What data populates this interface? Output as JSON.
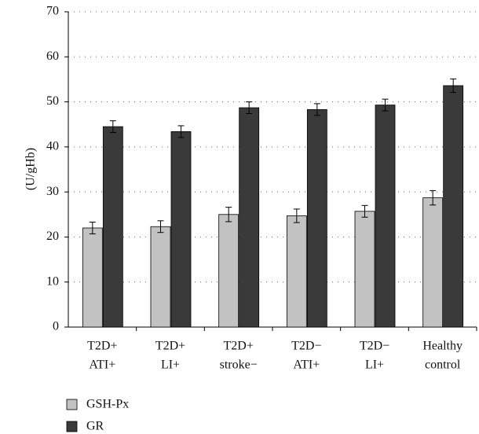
{
  "chart_data": {
    "type": "bar",
    "y_label": "(U/gHb)",
    "categories": [
      [
        "T2D+",
        "ATI+"
      ],
      [
        "T2D+",
        "LI+"
      ],
      [
        "T2D+",
        "stroke−"
      ],
      [
        "T2D−",
        "ATI+"
      ],
      [
        "T2D−",
        "LI+"
      ],
      [
        "Healthy",
        "control"
      ]
    ],
    "series": [
      {
        "name": "GSH-Px",
        "color": "#c2c2c2",
        "values": [
          22.0,
          22.3,
          25.0,
          24.7,
          25.7,
          28.7
        ],
        "errors": [
          1.3,
          1.3,
          1.6,
          1.5,
          1.3,
          1.6
        ]
      },
      {
        "name": "GR",
        "color": "#3a3a3a",
        "values": [
          44.5,
          43.4,
          48.7,
          48.3,
          49.3,
          53.6
        ],
        "errors": [
          1.3,
          1.3,
          1.3,
          1.3,
          1.3,
          1.5
        ]
      }
    ],
    "ylim": [
      0,
      70
    ],
    "yticks": [
      0,
      10,
      20,
      30,
      40,
      50,
      60,
      70
    ],
    "grid": true,
    "legend": "bottom-left"
  }
}
